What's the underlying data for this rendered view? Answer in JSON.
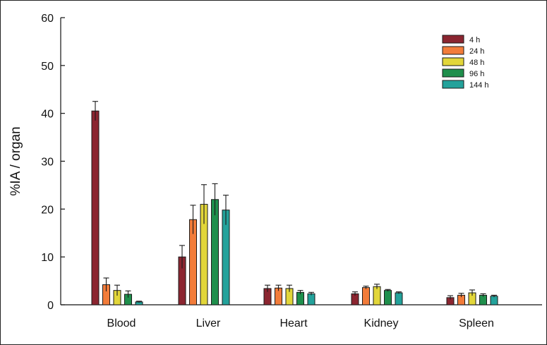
{
  "chart_data": {
    "type": "bar",
    "title": "",
    "xlabel": "",
    "ylabel": "%IA / organ",
    "ylim": [
      0,
      60
    ],
    "yticks": [
      0,
      10,
      20,
      30,
      40,
      50,
      60
    ],
    "grid": false,
    "legend_position": "top-right",
    "categories": [
      "Blood",
      "Liver",
      "Heart",
      "Kidney",
      "Spleen"
    ],
    "series": [
      {
        "name": "4 h",
        "color": "#8b2530",
        "values": [
          40.5,
          10.0,
          3.4,
          2.3,
          1.5
        ],
        "errors": [
          2.0,
          2.4,
          0.7,
          0.4,
          0.4
        ]
      },
      {
        "name": "24 h",
        "color": "#f27c3a",
        "values": [
          4.2,
          17.8,
          3.5,
          3.6,
          2.0
        ],
        "errors": [
          1.4,
          3.0,
          0.6,
          0.3,
          0.4
        ]
      },
      {
        "name": "48 h",
        "color": "#e2d63a",
        "values": [
          3.0,
          21.0,
          3.4,
          3.8,
          2.5
        ],
        "errors": [
          1.1,
          4.1,
          0.7,
          0.5,
          0.6
        ]
      },
      {
        "name": "96 h",
        "color": "#1f8f4c",
        "values": [
          2.2,
          22.0,
          2.6,
          3.0,
          2.0
        ],
        "errors": [
          0.7,
          3.3,
          0.4,
          0.2,
          0.3
        ]
      },
      {
        "name": "144 h",
        "color": "#23a29b",
        "values": [
          0.6,
          19.8,
          2.3,
          2.5,
          1.8
        ],
        "errors": [
          0.15,
          3.1,
          0.3,
          0.2,
          0.2
        ]
      }
    ]
  }
}
